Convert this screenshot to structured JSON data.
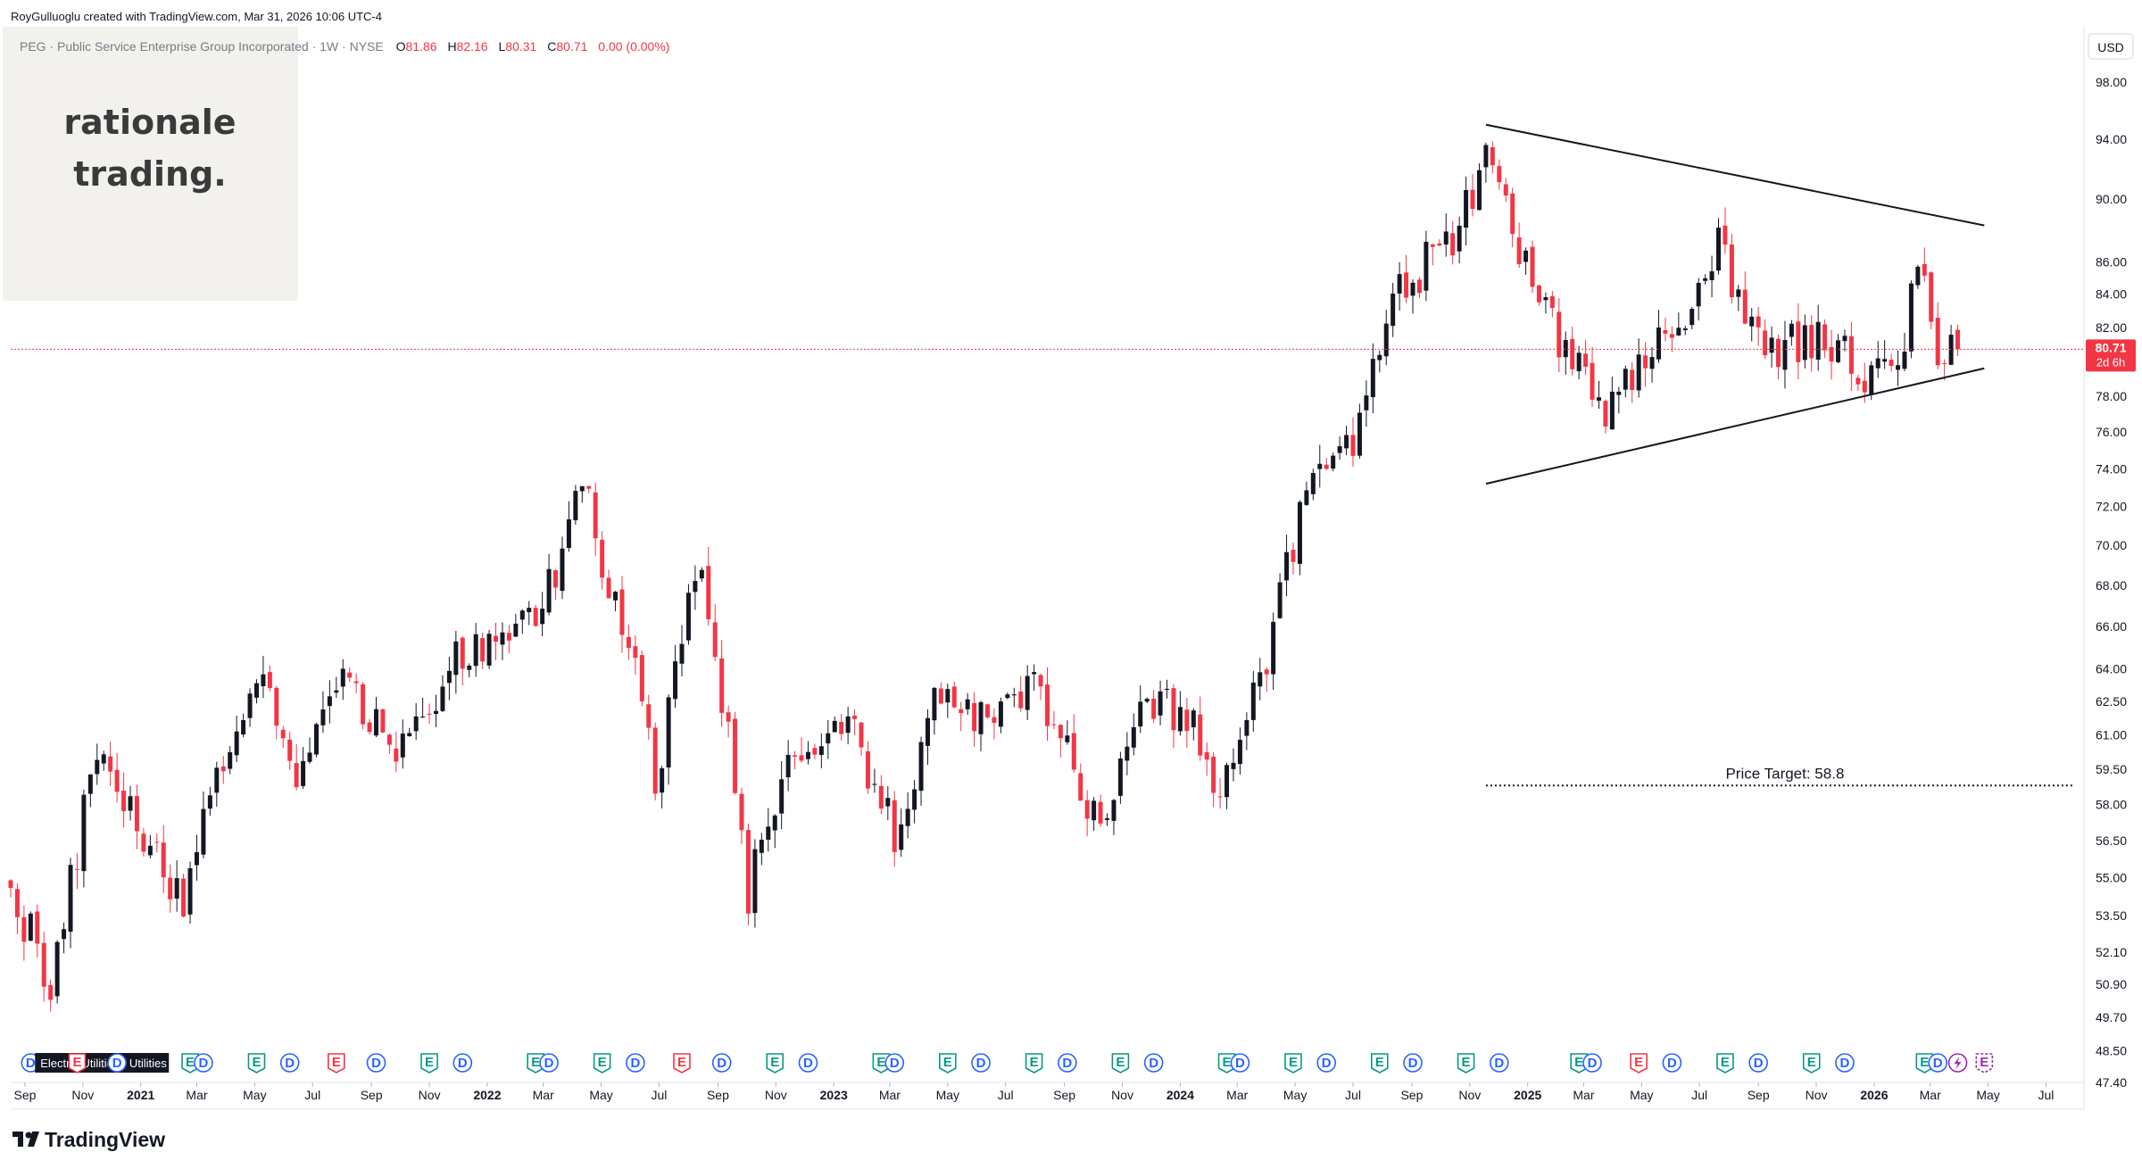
{
  "attribution": "RoyGulluoglu created with TradingView.com, Mar 31, 2026 10:06 UTC-4",
  "legend": {
    "symbol_desc": "PEG · Public Service Enterprise Group Incorporated · 1W · NYSE",
    "o_label": "O",
    "o_value": "81.86",
    "h_label": "H",
    "h_value": "82.16",
    "l_label": "L",
    "l_value": "80.31",
    "c_label": "C",
    "c_value": "80.71",
    "change": "0.00 (0.00%)"
  },
  "watermark": {
    "line1": "rationale",
    "line2": "trading."
  },
  "currency": "USD",
  "last_price": {
    "value": "80.71",
    "countdown": "2d 6h"
  },
  "sector_tag": "Electric Utilities · Utilities",
  "branding": "TradingView",
  "colors": {
    "up": "#131722",
    "down": "#f23645",
    "accent": "#2962ff",
    "earn": "#089981",
    "purple": "#9c27b0"
  },
  "chart_data": {
    "type": "candlestick",
    "title": "PEG · Public Service Enterprise Group Incorporated · 1W · NYSE",
    "y_axis": {
      "scale": "log",
      "range": [
        47.4,
        102
      ],
      "ticks": [
        "98.00",
        "94.00",
        "90.00",
        "86.00",
        "84.00",
        "82.00",
        "80.00",
        "78.00",
        "76.00",
        "74.00",
        "72.00",
        "70.00",
        "68.00",
        "66.00",
        "64.00",
        "62.50",
        "61.00",
        "59.50",
        "58.00",
        "56.50",
        "55.00",
        "53.50",
        "52.10",
        "50.90",
        "49.70",
        "48.50",
        "47.40"
      ]
    },
    "x_axis": {
      "range": [
        "2020-08-17",
        "2026-08-10"
      ],
      "ticks": [
        {
          "label": "Sep",
          "date": "2020-09-01"
        },
        {
          "label": "Nov",
          "date": "2020-11-01"
        },
        {
          "label": "2021",
          "date": "2021-01-01",
          "bold": true
        },
        {
          "label": "Mar",
          "date": "2021-03-01"
        },
        {
          "label": "May",
          "date": "2021-05-01"
        },
        {
          "label": "Jul",
          "date": "2021-07-01"
        },
        {
          "label": "Sep",
          "date": "2021-09-01"
        },
        {
          "label": "Nov",
          "date": "2021-11-01"
        },
        {
          "label": "2022",
          "date": "2022-01-01",
          "bold": true
        },
        {
          "label": "Mar",
          "date": "2022-03-01"
        },
        {
          "label": "May",
          "date": "2022-05-01"
        },
        {
          "label": "Jul",
          "date": "2022-07-01"
        },
        {
          "label": "Sep",
          "date": "2022-09-01"
        },
        {
          "label": "Nov",
          "date": "2022-11-01"
        },
        {
          "label": "2023",
          "date": "2023-01-01",
          "bold": true
        },
        {
          "label": "Mar",
          "date": "2023-03-01"
        },
        {
          "label": "May",
          "date": "2023-05-01"
        },
        {
          "label": "Jul",
          "date": "2023-07-01"
        },
        {
          "label": "Sep",
          "date": "2023-09-01"
        },
        {
          "label": "Nov",
          "date": "2023-11-01"
        },
        {
          "label": "2024",
          "date": "2024-01-01",
          "bold": true
        },
        {
          "label": "Mar",
          "date": "2024-03-01"
        },
        {
          "label": "May",
          "date": "2024-05-01"
        },
        {
          "label": "Jul",
          "date": "2024-07-01"
        },
        {
          "label": "Sep",
          "date": "2024-09-01"
        },
        {
          "label": "Nov",
          "date": "2024-11-01"
        },
        {
          "label": "2025",
          "date": "2025-01-01",
          "bold": true
        },
        {
          "label": "Mar",
          "date": "2025-03-01"
        },
        {
          "label": "May",
          "date": "2025-05-01"
        },
        {
          "label": "Jul",
          "date": "2025-07-01"
        },
        {
          "label": "Sep",
          "date": "2025-09-01"
        },
        {
          "label": "Nov",
          "date": "2025-11-01"
        },
        {
          "label": "2026",
          "date": "2026-01-01",
          "bold": true
        },
        {
          "label": "Mar",
          "date": "2026-03-01"
        },
        {
          "label": "May",
          "date": "2026-05-01"
        },
        {
          "label": "Jul",
          "date": "2026-07-01"
        }
      ]
    },
    "price_anchors": [
      [
        "2020-08-17",
        55
      ],
      [
        "2020-10-05",
        51
      ],
      [
        "2020-11-23",
        60
      ],
      [
        "2021-01-11",
        57
      ],
      [
        "2021-02-22",
        54
      ],
      [
        "2021-03-15",
        58.5
      ],
      [
        "2021-05-10",
        63.5
      ],
      [
        "2021-06-21",
        59.5
      ],
      [
        "2021-08-09",
        64
      ],
      [
        "2021-10-04",
        60
      ],
      [
        "2021-11-29",
        64
      ],
      [
        "2022-01-24",
        65.5
      ],
      [
        "2022-03-21",
        68
      ],
      [
        "2022-04-18",
        74
      ],
      [
        "2022-05-02",
        70
      ],
      [
        "2022-06-13",
        63.5
      ],
      [
        "2022-07-04",
        59
      ],
      [
        "2022-08-22",
        69.5
      ],
      [
        "2022-09-12",
        63
      ],
      [
        "2022-10-10",
        54
      ],
      [
        "2022-10-31",
        58
      ],
      [
        "2023-01-16",
        62
      ],
      [
        "2023-03-13",
        57
      ],
      [
        "2023-05-01",
        63
      ],
      [
        "2023-07-03",
        61.5
      ],
      [
        "2023-08-07",
        63
      ],
      [
        "2023-09-11",
        60
      ],
      [
        "2023-10-16",
        56.5
      ],
      [
        "2023-11-27",
        62.5
      ],
      [
        "2024-01-15",
        62
      ],
      [
        "2024-02-19",
        58
      ],
      [
        "2024-04-08",
        64.5
      ],
      [
        "2024-05-20",
        73
      ],
      [
        "2024-07-01",
        75
      ],
      [
        "2024-07-29",
        79
      ],
      [
        "2024-09-02",
        85
      ],
      [
        "2024-10-21",
        87
      ],
      [
        "2024-11-25",
        93
      ],
      [
        "2025-01-13",
        84
      ],
      [
        "2025-02-24",
        80
      ],
      [
        "2025-04-07",
        77
      ],
      [
        "2025-05-05",
        80
      ],
      [
        "2025-06-23",
        82
      ],
      [
        "2025-07-28",
        87
      ],
      [
        "2025-09-15",
        81
      ],
      [
        "2025-11-24",
        81
      ],
      [
        "2026-01-12",
        79
      ],
      [
        "2026-02-02",
        80
      ],
      [
        "2026-02-23",
        86
      ],
      [
        "2026-03-16",
        80.5
      ],
      [
        "2026-03-30",
        80.71
      ]
    ],
    "last_candle": {
      "date": "2026-03-30",
      "open": 81.86,
      "high": 82.16,
      "low": 80.31,
      "close": 80.71
    },
    "trendlines": [
      {
        "name": "upper",
        "from": [
          "2024-11-18",
          95.0
        ],
        "to": [
          "2026-04-27",
          88.3
        ]
      },
      {
        "name": "lower",
        "from": [
          "2024-11-18",
          73.2
        ],
        "to": [
          "2026-04-27",
          79.6
        ]
      }
    ],
    "price_target": {
      "label": "Price Target: 58.8",
      "value": 58.8,
      "from": "2024-11-18",
      "to": "2026-08-10"
    },
    "events": [
      {
        "type": "D",
        "date": "2020-09-07"
      },
      {
        "type": "S",
        "date": "2020-09-21",
        "text": "Electric Utilities · Utilities"
      },
      {
        "type": "E",
        "date": "2020-10-26",
        "red": true
      },
      {
        "type": "D",
        "date": "2020-12-07"
      },
      {
        "type": "E",
        "date": "2021-02-22"
      },
      {
        "type": "D",
        "date": "2021-03-08"
      },
      {
        "type": "E",
        "date": "2021-05-03"
      },
      {
        "type": "D",
        "date": "2021-06-07"
      },
      {
        "type": "E",
        "date": "2021-07-26",
        "red": true
      },
      {
        "type": "D",
        "date": "2021-09-06"
      },
      {
        "type": "E",
        "date": "2021-11-01"
      },
      {
        "type": "D",
        "date": "2021-12-06"
      },
      {
        "type": "E",
        "date": "2022-02-21"
      },
      {
        "type": "D",
        "date": "2022-03-07"
      },
      {
        "type": "E",
        "date": "2022-05-02"
      },
      {
        "type": "D",
        "date": "2022-06-06"
      },
      {
        "type": "E",
        "date": "2022-07-25",
        "red": true
      },
      {
        "type": "D",
        "date": "2022-09-05"
      },
      {
        "type": "E",
        "date": "2022-10-31"
      },
      {
        "type": "D",
        "date": "2022-12-05"
      },
      {
        "type": "E",
        "date": "2023-02-20"
      },
      {
        "type": "D",
        "date": "2023-03-06"
      },
      {
        "type": "E",
        "date": "2023-05-01"
      },
      {
        "type": "D",
        "date": "2023-06-05"
      },
      {
        "type": "E",
        "date": "2023-07-31"
      },
      {
        "type": "D",
        "date": "2023-09-04"
      },
      {
        "type": "E",
        "date": "2023-10-30"
      },
      {
        "type": "D",
        "date": "2023-12-04"
      },
      {
        "type": "E",
        "date": "2024-02-19"
      },
      {
        "type": "D",
        "date": "2024-03-04"
      },
      {
        "type": "E",
        "date": "2024-04-29"
      },
      {
        "type": "D",
        "date": "2024-06-03"
      },
      {
        "type": "E",
        "date": "2024-07-29"
      },
      {
        "type": "D",
        "date": "2024-09-02"
      },
      {
        "type": "E",
        "date": "2024-10-28"
      },
      {
        "type": "D",
        "date": "2024-12-02"
      },
      {
        "type": "E",
        "date": "2025-02-24"
      },
      {
        "type": "D",
        "date": "2025-03-10"
      },
      {
        "type": "E",
        "date": "2025-04-28",
        "red": true
      },
      {
        "type": "D",
        "date": "2025-06-02"
      },
      {
        "type": "E",
        "date": "2025-07-28"
      },
      {
        "type": "D",
        "date": "2025-09-01"
      },
      {
        "type": "E",
        "date": "2025-10-27"
      },
      {
        "type": "D",
        "date": "2025-12-01"
      },
      {
        "type": "E",
        "date": "2026-02-23"
      },
      {
        "type": "D",
        "date": "2026-03-09"
      },
      {
        "type": "P",
        "date": "2026-03-30"
      },
      {
        "type": "E",
        "date": "2026-04-27",
        "future": true
      }
    ]
  }
}
